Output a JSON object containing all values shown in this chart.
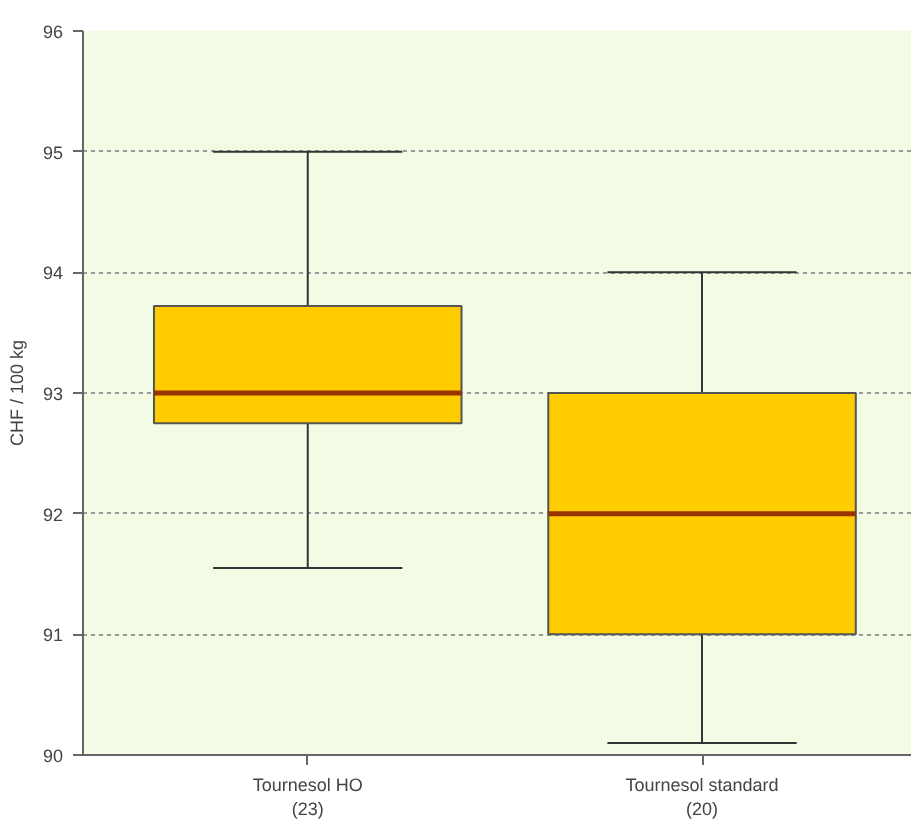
{
  "chart_data": {
    "type": "box",
    "ylabel": "CHF / 100 kg",
    "categories": [
      "Tournesol HO\n(23)",
      "Tournesol standard\n(20)"
    ],
    "boxes": [
      {
        "low": 91.55,
        "q1": 92.75,
        "median": 93.0,
        "q3": 93.72,
        "high": 95.0
      },
      {
        "low": 90.1,
        "q1": 91.0,
        "median": 92.0,
        "q3": 93.0,
        "high": 94.0
      }
    ],
    "color": "#ffcc00",
    "ylim": [
      90,
      96
    ],
    "yticks": [
      90,
      91,
      92,
      93,
      94,
      95,
      96
    ],
    "grid": "y"
  }
}
